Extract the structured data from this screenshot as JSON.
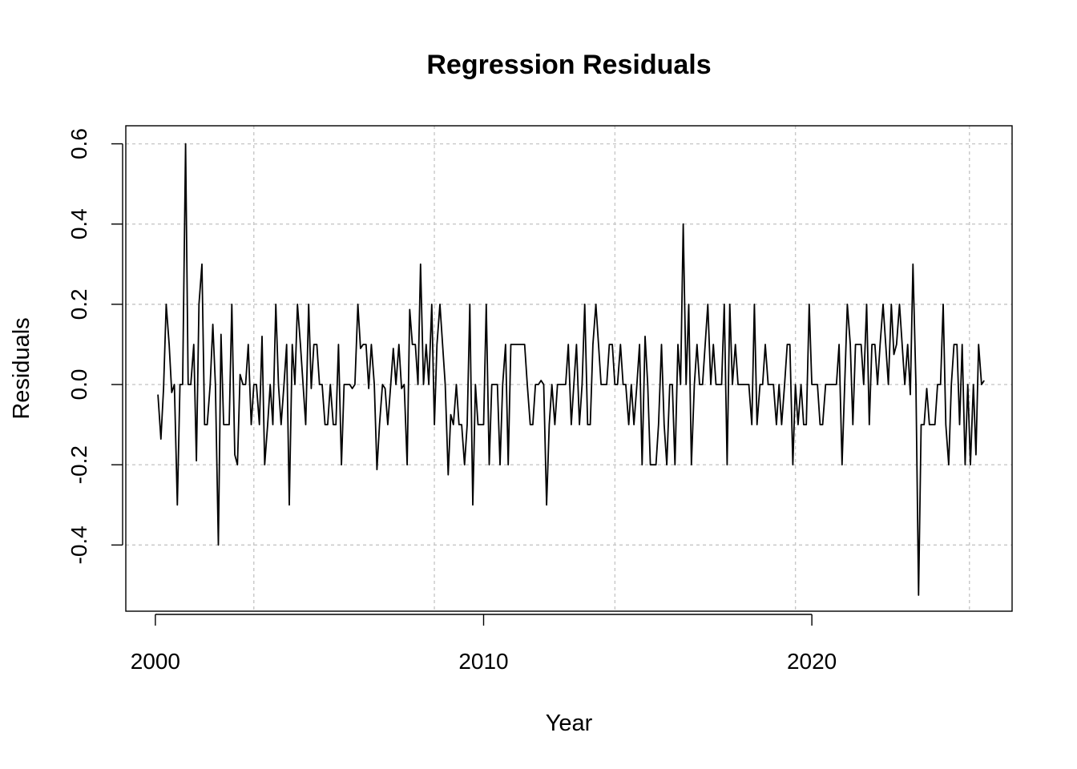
{
  "chart_data": {
    "type": "line",
    "title": "Regression Residuals",
    "xlabel": "Year",
    "ylabel": "Residuals",
    "xlim": [
      1999.1,
      2026.1
    ],
    "ylim": [
      -0.565,
      0.645
    ],
    "x_ticks": [
      2000,
      2010,
      2020
    ],
    "x_tick_labels": [
      "2000",
      "2010",
      "2020"
    ],
    "y_ticks": [
      -0.4,
      -0.2,
      0.0,
      0.2,
      0.4,
      0.6
    ],
    "y_tick_labels": [
      "-0.4",
      "-0.2",
      "0.0",
      "0.2",
      "0.4",
      "0.6"
    ],
    "x_grid": [
      2003,
      2008.5,
      2014,
      2019.5,
      2024.8
    ],
    "y_grid": [
      -0.4,
      -0.2,
      0.0,
      0.2,
      0.4,
      0.6
    ],
    "grid": true,
    "line_color": "#000000",
    "grid_color": "#c8c8c8",
    "series": [
      {
        "x": [
          2000.08,
          2000.17,
          2000.25,
          2000.33,
          2000.42,
          2000.5,
          2000.58,
          2000.67,
          2000.75,
          2000.83,
          2000.92,
          2001.0,
          2001.08,
          2001.17,
          2001.25,
          2001.33,
          2001.42,
          2001.5,
          2001.58,
          2001.67,
          2001.75,
          2001.83,
          2001.92,
          2002.0,
          2002.08,
          2002.17,
          2002.25,
          2002.33,
          2002.42,
          2002.5,
          2002.58,
          2002.67,
          2002.75,
          2002.83,
          2002.92,
          2003.0,
          2003.08,
          2003.17,
          2003.25,
          2003.33,
          2003.42,
          2003.5,
          2003.58,
          2003.67,
          2003.75,
          2003.83,
          2003.92,
          2004.0,
          2004.08,
          2004.17,
          2004.25,
          2004.33,
          2004.42,
          2004.5,
          2004.58,
          2004.67,
          2004.75,
          2004.83,
          2004.92,
          2005.0,
          2005.08,
          2005.17,
          2005.25,
          2005.33,
          2005.42,
          2005.5,
          2005.58,
          2005.67,
          2005.75,
          2005.83,
          2005.92,
          2006.0,
          2006.08,
          2006.17,
          2006.25,
          2006.33,
          2006.42,
          2006.5,
          2006.58,
          2006.67,
          2006.75,
          2006.83,
          2006.92,
          2007.0,
          2007.08,
          2007.17,
          2007.25,
          2007.33,
          2007.42,
          2007.5,
          2007.58,
          2007.67,
          2007.75,
          2007.83,
          2007.92,
          2008.0,
          2008.08,
          2008.17,
          2008.25,
          2008.33,
          2008.42,
          2008.5,
          2008.58,
          2008.67,
          2008.75,
          2008.83,
          2008.92,
          2009.0,
          2009.08,
          2009.17,
          2009.25,
          2009.33,
          2009.42,
          2009.5,
          2009.58,
          2009.67,
          2009.75,
          2009.83,
          2009.92,
          2010.0,
          2010.08,
          2010.17,
          2010.25,
          2010.33,
          2010.42,
          2010.5,
          2010.58,
          2010.67,
          2010.75,
          2010.83,
          2010.92,
          2011.0,
          2011.08,
          2011.17,
          2011.25,
          2011.33,
          2011.42,
          2011.5,
          2011.58,
          2011.67,
          2011.75,
          2011.83,
          2011.92,
          2012.0,
          2012.08,
          2012.17,
          2012.25,
          2012.33,
          2012.42,
          2012.5,
          2012.58,
          2012.67,
          2012.75,
          2012.83,
          2012.92,
          2013.0,
          2013.08,
          2013.17,
          2013.25,
          2013.33,
          2013.42,
          2013.5,
          2013.58,
          2013.67,
          2013.75,
          2013.83,
          2013.92,
          2014.0,
          2014.08,
          2014.17,
          2014.25,
          2014.33,
          2014.42,
          2014.5,
          2014.58,
          2014.67,
          2014.75,
          2014.83,
          2014.92,
          2015.0,
          2015.08,
          2015.17,
          2015.25,
          2015.33,
          2015.42,
          2015.5,
          2015.58,
          2015.67,
          2015.75,
          2015.83,
          2015.92,
          2016.0,
          2016.08,
          2016.17,
          2016.25,
          2016.33,
          2016.42,
          2016.5,
          2016.58,
          2016.67,
          2016.75,
          2016.83,
          2016.92,
          2017.0,
          2017.08,
          2017.17,
          2017.25,
          2017.33,
          2017.42,
          2017.5,
          2017.58,
          2017.67,
          2017.75,
          2017.83,
          2017.92,
          2018.0,
          2018.08,
          2018.17,
          2018.25,
          2018.33,
          2018.42,
          2018.5,
          2018.58,
          2018.67,
          2018.75,
          2018.83,
          2018.92,
          2019.0,
          2019.08,
          2019.17,
          2019.25,
          2019.33,
          2019.42,
          2019.5,
          2019.58,
          2019.67,
          2019.75,
          2019.83,
          2019.92,
          2020.0,
          2020.08,
          2020.17,
          2020.25,
          2020.33,
          2020.42,
          2020.5,
          2020.58,
          2020.67,
          2020.75,
          2020.83,
          2020.92,
          2021.0,
          2021.08,
          2021.17,
          2021.25,
          2021.33,
          2021.42,
          2021.5,
          2021.58,
          2021.67,
          2021.75,
          2021.83,
          2021.92,
          2022.0,
          2022.08,
          2022.17,
          2022.25,
          2022.33,
          2022.42,
          2022.5,
          2022.58,
          2022.67,
          2022.75,
          2022.83,
          2022.92,
          2023.0,
          2023.08,
          2023.17,
          2023.25,
          2023.33,
          2023.42,
          2023.5,
          2023.58,
          2023.67,
          2023.75,
          2023.83,
          2023.92,
          2024.0,
          2024.08,
          2024.17,
          2024.25,
          2024.33,
          2024.42,
          2024.5,
          2024.58,
          2024.67,
          2024.75,
          2024.83,
          2024.92,
          2025.0,
          2025.08,
          2025.17,
          2025.25
        ],
        "y": [
          -0.025,
          -0.136,
          -0.01,
          0.2,
          0.1,
          -0.02,
          0.0,
          -0.3,
          0.0,
          0.0,
          0.6,
          0.0,
          0.0,
          0.1,
          -0.19,
          0.2,
          0.3,
          -0.1,
          -0.1,
          0.0,
          0.15,
          0.0,
          -0.4,
          0.125,
          -0.1,
          -0.1,
          -0.1,
          0.2,
          -0.175,
          -0.2,
          0.025,
          0.0,
          0.0,
          0.1,
          -0.1,
          0.0,
          0.0,
          -0.1,
          0.12,
          -0.2,
          -0.1,
          0.0,
          -0.1,
          0.2,
          0.0,
          -0.1,
          0.0,
          0.1,
          -0.3,
          0.1,
          0.0,
          0.2,
          0.1,
          0.0,
          -0.1,
          0.2,
          -0.01,
          0.1,
          0.1,
          0.0,
          0.0,
          -0.1,
          -0.1,
          0.0,
          -0.1,
          -0.1,
          0.1,
          -0.2,
          0.0,
          0.0,
          0.0,
          -0.01,
          0.0,
          0.2,
          0.09,
          0.1,
          0.1,
          -0.01,
          0.1,
          0.0,
          -0.212,
          -0.1,
          0.0,
          -0.01,
          -0.1,
          0.0,
          0.09,
          0.0,
          0.1,
          -0.01,
          0.0,
          -0.2,
          0.187,
          0.1,
          0.1,
          0.0,
          0.3,
          0.0,
          0.1,
          0.0,
          0.2,
          -0.1,
          0.1,
          0.2,
          0.1,
          0.0,
          -0.225,
          -0.075,
          -0.1,
          0.0,
          -0.1,
          -0.1,
          -0.2,
          -0.1,
          0.2,
          -0.3,
          0.0,
          -0.1,
          -0.1,
          -0.1,
          0.2,
          -0.2,
          0.0,
          0.0,
          0.0,
          -0.2,
          0.0,
          0.1,
          -0.2,
          0.1,
          0.1,
          0.1,
          0.1,
          0.1,
          0.1,
          0.0,
          -0.1,
          -0.1,
          0.0,
          0.0,
          0.01,
          0.0,
          -0.3,
          -0.1,
          0.0,
          -0.1,
          0.0,
          0.0,
          0.0,
          0.0,
          0.1,
          -0.1,
          0.0,
          0.1,
          -0.1,
          0.0,
          0.2,
          -0.1,
          -0.1,
          0.1,
          0.2,
          0.1,
          0.0,
          0.0,
          0.0,
          0.1,
          0.1,
          0.0,
          0.0,
          0.1,
          0.0,
          0.0,
          -0.1,
          0.0,
          -0.1,
          0.0,
          0.1,
          -0.2,
          0.12,
          0.0,
          -0.2,
          -0.2,
          -0.2,
          -0.1,
          0.1,
          -0.1,
          -0.2,
          0.0,
          0.0,
          -0.2,
          0.1,
          0.0,
          0.4,
          0.0,
          0.2,
          -0.2,
          0.0,
          0.1,
          0.0,
          0.0,
          0.1,
          0.2,
          0.0,
          0.1,
          0.0,
          0.0,
          0.0,
          0.2,
          -0.2,
          0.2,
          0.0,
          0.1,
          0.0,
          0.0,
          0.0,
          0.0,
          0.0,
          -0.1,
          0.2,
          -0.1,
          0.0,
          0.0,
          0.1,
          0.0,
          0.0,
          0.0,
          -0.1,
          0.0,
          -0.1,
          0.0,
          0.1,
          0.1,
          -0.2,
          0.0,
          -0.1,
          0.0,
          -0.1,
          -0.1,
          0.2,
          0.0,
          0.0,
          0.0,
          -0.1,
          -0.1,
          0.0,
          0.0,
          0.0,
          0.0,
          0.0,
          0.1,
          -0.2,
          0.0,
          0.2,
          0.1,
          -0.1,
          0.1,
          0.1,
          0.1,
          0.0,
          0.2,
          -0.1,
          0.1,
          0.1,
          0.0,
          0.1,
          0.2,
          0.1,
          0.0,
          0.2,
          0.075,
          0.1,
          0.2,
          0.1,
          0.0,
          0.1,
          -0.025,
          0.3,
          0.0,
          -0.525,
          -0.1,
          -0.1,
          -0.01,
          -0.1,
          -0.1,
          -0.1,
          0.0,
          0.0,
          0.2,
          -0.1,
          -0.2,
          0.0,
          0.1,
          0.1,
          -0.1,
          0.1,
          -0.2,
          0.0,
          -0.2,
          0.0,
          -0.175,
          0.1,
          0.0,
          0.01
        ]
      }
    ]
  }
}
